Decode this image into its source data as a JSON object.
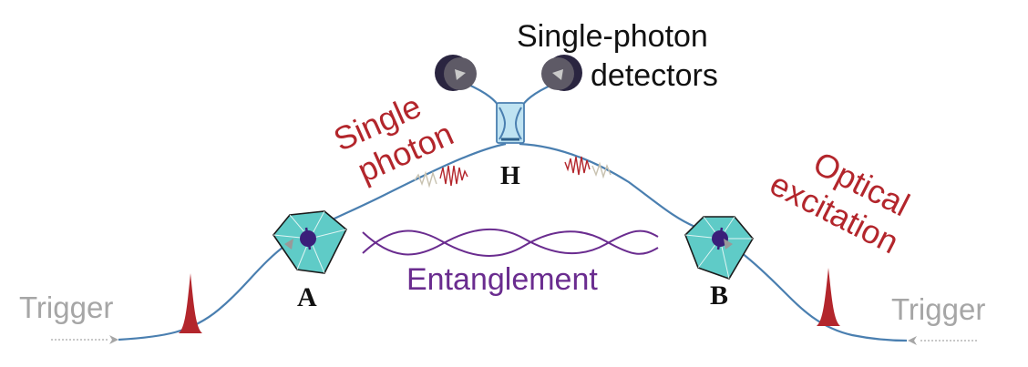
{
  "labels": {
    "detectors_line1": "Single-photon",
    "detectors_line2": "detectors",
    "single_photon_line1": "Single",
    "single_photon_line2": "photon",
    "optical_line1": "Optical",
    "optical_line2": "excitation",
    "beamsplitter": "H",
    "node_a": "A",
    "node_b": "B",
    "entanglement": "Entanglement",
    "trigger_left": "Trigger",
    "trigger_right": "Trigger"
  },
  "colors": {
    "fiber": "#4a7fb0",
    "photon": "#b3262c",
    "entanglement": "#6a2c8f",
    "trigger": "#a6a6a6",
    "detector": "#3b3550",
    "detector_face": "#5e5a66",
    "beamsplitter": "#bfe3f2",
    "diamond": "#3fb8b6",
    "nv": "#3a1f7a",
    "text": "#111111"
  },
  "icons": {
    "detector": "detector-icon",
    "beamsplitter": "beamsplitter-icon",
    "diamond": "diamond-crystal-icon",
    "pulse": "laser-pulse-icon"
  }
}
